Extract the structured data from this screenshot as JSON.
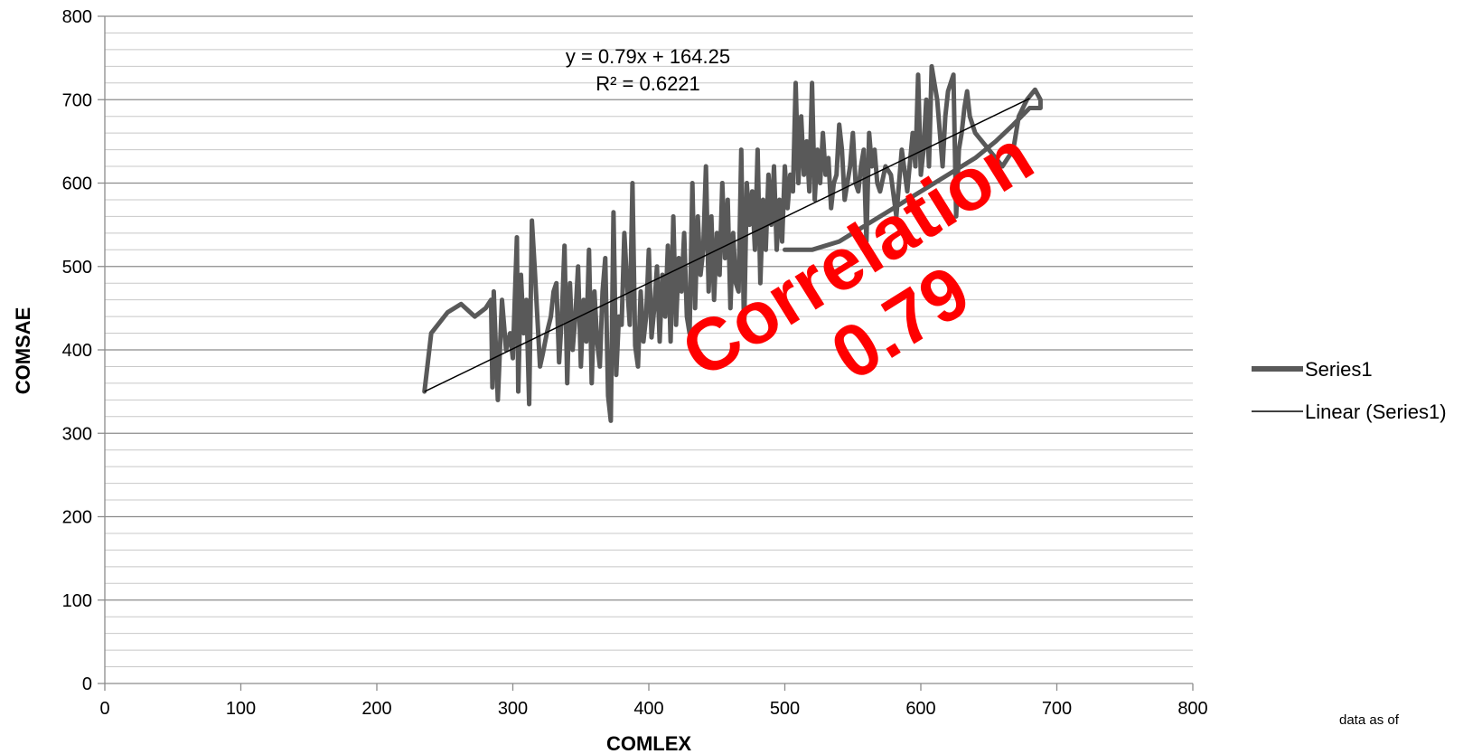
{
  "chart_data": {
    "type": "line",
    "xlabel": "COMLEX",
    "ylabel": "COMSAE",
    "xlim": [
      0,
      800
    ],
    "ylim": [
      0,
      800
    ],
    "x_ticks": [
      0,
      100,
      200,
      300,
      400,
      500,
      600,
      700,
      800
    ],
    "y_ticks": [
      0,
      100,
      200,
      300,
      400,
      500,
      600,
      700,
      800
    ],
    "y_minor_step": 20,
    "grid": true,
    "legend_position": "right",
    "series": [
      {
        "name": "Series1",
        "color": "#595959",
        "x": [
          235,
          240,
          252,
          262,
          272,
          280,
          284,
          285,
          286,
          289,
          292,
          295,
          298,
          300,
          303,
          304,
          306,
          308,
          310,
          312,
          314,
          316,
          318,
          320,
          322,
          325,
          328,
          330,
          332,
          334,
          336,
          338,
          340,
          342,
          344,
          346,
          348,
          350,
          352,
          354,
          356,
          358,
          360,
          362,
          364,
          366,
          368,
          370,
          372,
          374,
          376,
          378,
          380,
          382,
          384,
          386,
          388,
          390,
          392,
          394,
          396,
          398,
          400,
          402,
          404,
          406,
          408,
          410,
          412,
          414,
          416,
          418,
          420,
          422,
          424,
          426,
          428,
          430,
          432,
          434,
          436,
          438,
          440,
          442,
          444,
          446,
          448,
          450,
          452,
          454,
          456,
          458,
          460,
          462,
          464,
          466,
          468,
          470,
          472,
          474,
          476,
          478,
          480,
          482,
          484,
          486,
          488,
          490,
          492,
          494,
          496,
          498,
          500,
          502,
          504,
          506,
          508,
          510,
          512,
          514,
          516,
          518,
          520,
          522,
          524,
          526,
          528,
          530,
          532,
          534,
          536,
          538,
          540,
          542,
          544,
          546,
          548,
          550,
          552,
          554,
          556,
          558,
          560,
          562,
          564,
          566,
          568,
          570,
          574,
          578,
          582,
          586,
          590,
          594,
          596,
          598,
          600,
          602,
          604,
          606,
          608,
          610,
          612,
          614,
          616,
          618,
          620,
          622,
          624,
          626,
          628,
          630,
          632,
          634,
          636,
          640,
          650,
          660,
          668,
          672,
          678,
          684,
          688,
          688,
          680,
          668,
          655,
          640,
          620,
          600,
          580,
          560,
          540,
          520,
          500
        ],
        "y": [
          350,
          420,
          445,
          455,
          440,
          450,
          460,
          355,
          470,
          340,
          460,
          400,
          420,
          390,
          535,
          350,
          490,
          420,
          460,
          335,
          555,
          500,
          440,
          380,
          395,
          420,
          440,
          470,
          480,
          385,
          440,
          525,
          360,
          480,
          400,
          440,
          500,
          380,
          460,
          410,
          520,
          360,
          470,
          410,
          380,
          470,
          510,
          345,
          315,
          565,
          370,
          440,
          430,
          540,
          480,
          430,
          600,
          405,
          380,
          470,
          410,
          440,
          520,
          415,
          450,
          500,
          410,
          490,
          440,
          525,
          410,
          560,
          430,
          510,
          470,
          540,
          440,
          420,
          600,
          450,
          560,
          490,
          520,
          620,
          470,
          560,
          460,
          540,
          490,
          600,
          510,
          580,
          450,
          540,
          480,
          470,
          640,
          420,
          600,
          550,
          590,
          520,
          640,
          480,
          580,
          520,
          610,
          550,
          620,
          520,
          580,
          530,
          620,
          570,
          610,
          590,
          720,
          600,
          680,
          610,
          650,
          590,
          720,
          580,
          640,
          600,
          660,
          610,
          630,
          570,
          600,
          610,
          670,
          640,
          580,
          600,
          620,
          660,
          600,
          590,
          620,
          640,
          530,
          660,
          620,
          640,
          600,
          590,
          620,
          610,
          560,
          640,
          590,
          660,
          620,
          730,
          610,
          640,
          700,
          620,
          740,
          720,
          700,
          660,
          620,
          680,
          710,
          720,
          730,
          560,
          640,
          660,
          690,
          710,
          680,
          660,
          640,
          620,
          640,
          680,
          700,
          712,
          700,
          690,
          690,
          670,
          650,
          630,
          610,
          590,
          570,
          550,
          530,
          520,
          520
        ]
      }
    ],
    "trendline": {
      "name": "Linear (Series1)",
      "type": "linear",
      "slope": 0.79,
      "intercept": 164.25,
      "x_range": [
        235,
        680
      ],
      "equation": "y = 0.79x + 164.25",
      "r_squared": "R² = 0.6221",
      "color": "#000000"
    },
    "annotations": {
      "stamp_line1": "Correlation",
      "stamp_line2": "0.79",
      "stamp_color": "#ff0000",
      "footnote": "data  as of"
    }
  }
}
